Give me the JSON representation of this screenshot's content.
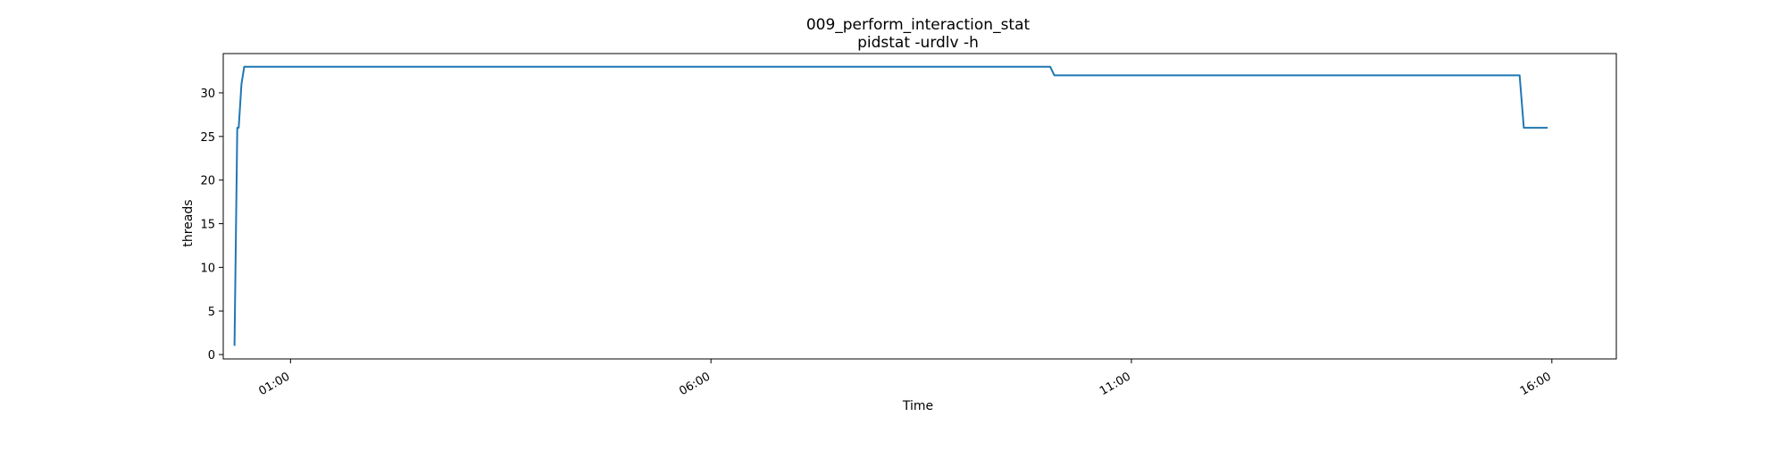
{
  "chart_data": {
    "type": "line",
    "title": "009_perform_interaction_stat",
    "subtitle": "pidstat -urdlv -h",
    "xlabel": "Time",
    "ylabel": "threads",
    "x_unit": "time of day (HH:MM)",
    "xlim": [
      "00:12",
      "16:46"
    ],
    "ylim": [
      -0.5,
      34.5
    ],
    "grid": false,
    "legend": "none",
    "x_tick_labels": [
      "01:00",
      "06:00",
      "11:00",
      "16:00"
    ],
    "y_tick_labels": [
      "0",
      "5",
      "10",
      "15",
      "20",
      "25",
      "30"
    ],
    "series": [
      {
        "color": "#1f77b4",
        "x": [
          "00:20",
          "00:22",
          "00:23",
          "00:25",
          "00:27",
          "00:29",
          "10:02",
          "10:05",
          "15:37",
          "15:40",
          "15:57"
        ],
        "y": [
          1,
          26,
          26,
          31,
          33,
          33,
          33,
          32,
          32,
          26,
          26
        ]
      }
    ]
  }
}
